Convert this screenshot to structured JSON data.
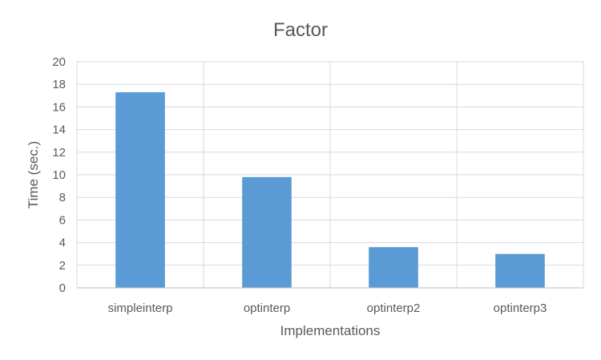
{
  "chart_data": {
    "type": "bar",
    "title": "Factor",
    "xlabel": "Implementations",
    "ylabel": "Time (sec.)",
    "categories": [
      "simpleinterp",
      "optinterp",
      "optinterp2",
      "optinterp3"
    ],
    "values": [
      17.3,
      9.8,
      3.6,
      3.0
    ],
    "ylim": [
      0,
      20
    ],
    "yticks": [
      "0",
      "2",
      "4",
      "6",
      "8",
      "10",
      "12",
      "14",
      "16",
      "18",
      "20"
    ],
    "grid": true,
    "bar_color": "#5b9bd5"
  }
}
